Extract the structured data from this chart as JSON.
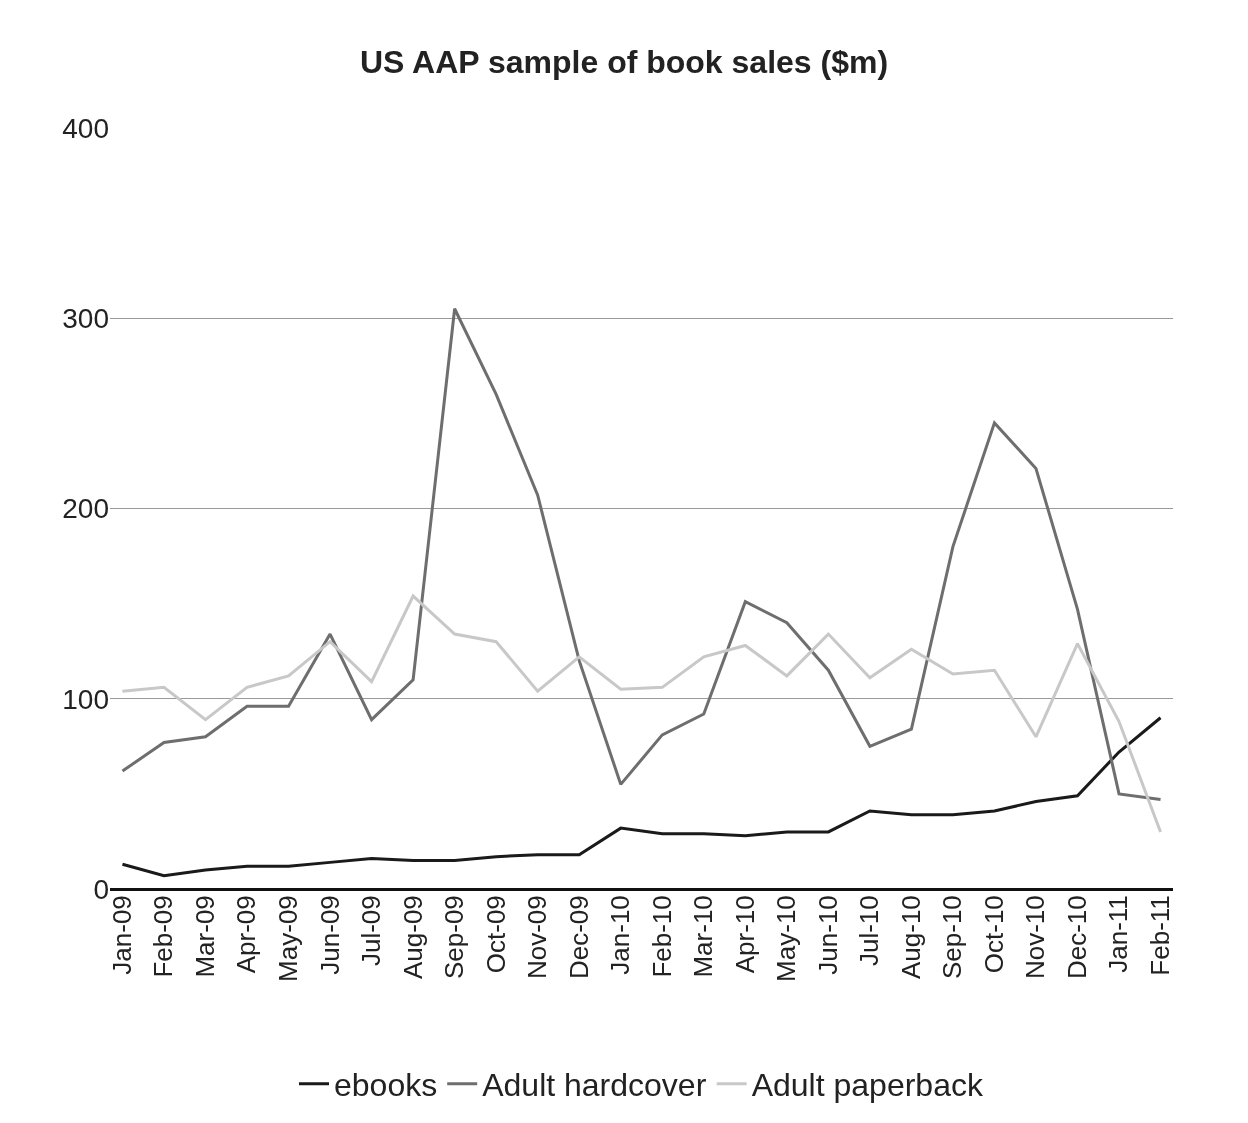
{
  "chart_data": {
    "type": "line",
    "title": "US AAP sample of book sales ($m)",
    "categories": [
      "Jan-09",
      "Feb-09",
      "Mar-09",
      "Apr-09",
      "May-09",
      "Jun-09",
      "Jul-09",
      "Aug-09",
      "Sep-09",
      "Oct-09",
      "Nov-09",
      "Dec-09",
      "Jan-10",
      "Feb-10",
      "Mar-10",
      "Apr-10",
      "May-10",
      "Jun-10",
      "Jul-10",
      "Aug-10",
      "Sep-10",
      "Oct-10",
      "Nov-10",
      "Dec-10",
      "Jan-11",
      "Feb-11"
    ],
    "series": [
      {
        "name": "ebooks",
        "color": "#1a1a1a",
        "values": [
          13,
          7,
          10,
          12,
          12,
          14,
          16,
          15,
          15,
          17,
          18,
          18,
          32,
          29,
          29,
          28,
          30,
          30,
          41,
          39,
          39,
          41,
          46,
          49,
          72,
          90
        ]
      },
      {
        "name": "Adult hardcover",
        "color": "#6e6e6e",
        "values": [
          62,
          77,
          80,
          96,
          96,
          134,
          89,
          110,
          305,
          260,
          207,
          120,
          55,
          81,
          92,
          151,
          140,
          115,
          75,
          84,
          180,
          245,
          221,
          147,
          50,
          47
        ]
      },
      {
        "name": "Adult paperback",
        "color": "#c8c8c8",
        "values": [
          104,
          106,
          89,
          106,
          112,
          130,
          109,
          154,
          134,
          130,
          104,
          122,
          105,
          106,
          122,
          128,
          112,
          134,
          111,
          126,
          113,
          115,
          80,
          129,
          88,
          30
        ]
      }
    ],
    "ylim": [
      0,
      400
    ],
    "yticks": [
      0,
      100,
      200,
      300,
      400
    ],
    "grid": "y",
    "legend": "bottom",
    "marker": "none",
    "line_style": "solid"
  }
}
